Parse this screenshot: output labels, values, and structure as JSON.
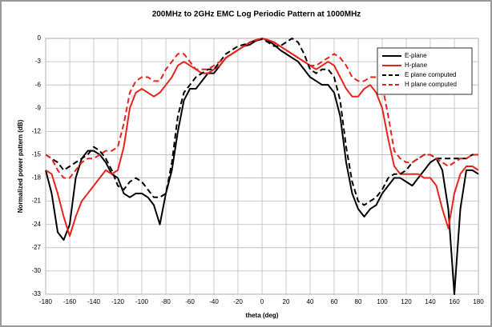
{
  "chart_data": {
    "type": "line",
    "title": "200MHz to 2GHz EMC Log Periodic Pattern at 1000MHz",
    "x_label": "theta (deg)",
    "y_label": "Normalized power pattern (dB)",
    "x": [
      -180,
      -175,
      -170,
      -165,
      -160,
      -155,
      -150,
      -145,
      -140,
      -135,
      -130,
      -125,
      -120,
      -115,
      -110,
      -105,
      -100,
      -95,
      -90,
      -85,
      -80,
      -75,
      -70,
      -65,
      -60,
      -55,
      -50,
      -45,
      -40,
      -35,
      -30,
      -25,
      -20,
      -15,
      -10,
      -5,
      0,
      5,
      10,
      15,
      20,
      25,
      30,
      35,
      40,
      45,
      50,
      55,
      60,
      65,
      70,
      75,
      80,
      85,
      90,
      95,
      100,
      105,
      110,
      115,
      120,
      125,
      130,
      135,
      140,
      145,
      150,
      155,
      160,
      165,
      170,
      175,
      180
    ],
    "series": [
      {
        "name": "E-plane",
        "color": "#000000",
        "linestyle": "solid",
        "values": [
          -17,
          -20,
          -25,
          -26,
          -24,
          -18,
          -15.5,
          -14.5,
          -14.5,
          -15,
          -16,
          -17.5,
          -18,
          -20,
          -20.5,
          -20,
          -20,
          -20.5,
          -21.5,
          -24,
          -20,
          -17,
          -12,
          -8,
          -6.5,
          -6.5,
          -5.5,
          -4.5,
          -4.5,
          -3.5,
          -2.5,
          -2,
          -1.5,
          -1,
          -0.8,
          -0.3,
          0,
          -0.3,
          -0.8,
          -1.5,
          -2,
          -2.5,
          -3,
          -4,
          -5,
          -5.5,
          -6,
          -6,
          -7,
          -10,
          -16,
          -20,
          -22,
          -23,
          -22,
          -21.5,
          -20,
          -19,
          -18,
          -18,
          -18.5,
          -19,
          -18,
          -17,
          -16,
          -15.5,
          -17,
          -22,
          -33,
          -22,
          -17,
          -17,
          -17.5
        ]
      },
      {
        "name": "H-plane",
        "color": "#e8241c",
        "linestyle": "solid",
        "values": [
          -17,
          -17.5,
          -20,
          -23,
          -25.5,
          -23,
          -21,
          -20,
          -19,
          -18,
          -17,
          -17.5,
          -17,
          -14,
          -9,
          -7,
          -6.5,
          -7,
          -7.5,
          -7,
          -6,
          -5,
          -3.5,
          -3,
          -3.5,
          -4,
          -4.5,
          -4.5,
          -4,
          -3.5,
          -2.5,
          -2,
          -1.5,
          -1,
          -0.5,
          -0.2,
          0,
          -0.2,
          -0.5,
          -1,
          -1.5,
          -2,
          -2.5,
          -3,
          -3.5,
          -4,
          -3.5,
          -3,
          -3.5,
          -5,
          -6.5,
          -7.5,
          -7.5,
          -6.5,
          -6,
          -7,
          -9,
          -13,
          -16.5,
          -17.5,
          -17.5,
          -17.5,
          -17.5,
          -18,
          -18,
          -19,
          -22,
          -24.5,
          -20,
          -17.5,
          -16.5,
          -16.5,
          -17
        ]
      },
      {
        "name": "E plane computed",
        "color": "#000000",
        "linestyle": "dashed",
        "values": [
          -15,
          -15.5,
          -16,
          -17,
          -16.5,
          -16,
          -15.5,
          -15,
          -14,
          -14.5,
          -15.5,
          -17,
          -19,
          -19.5,
          -18.5,
          -18,
          -18.5,
          -19.5,
          -20.5,
          -20.5,
          -20,
          -16,
          -10,
          -7,
          -6,
          -5,
          -4.5,
          -4,
          -4,
          -3,
          -2,
          -1.5,
          -1,
          -0.8,
          -0.5,
          -0.3,
          -0.1,
          -0.5,
          -1,
          -1,
          -0.5,
          0,
          -0.5,
          -2,
          -4,
          -4.5,
          -4,
          -4,
          -5,
          -8,
          -14,
          -18.5,
          -21,
          -21.5,
          -21,
          -20.5,
          -19.5,
          -18,
          -17.5,
          -17.5,
          -17,
          -16,
          -15.5,
          -15,
          -15,
          -15.5,
          -15.5,
          -15.5,
          -15.5,
          -15.5,
          -15.5,
          -15,
          -15
        ]
      },
      {
        "name": "H plane computed",
        "color": "#e8241c",
        "linestyle": "dashed",
        "values": [
          -15,
          -15.5,
          -17,
          -18,
          -18,
          -17,
          -16,
          -15.5,
          -15.5,
          -15,
          -14.5,
          -14.5,
          -14,
          -11,
          -7,
          -5.5,
          -5,
          -5,
          -5.5,
          -5.5,
          -4,
          -3,
          -2,
          -2,
          -3,
          -4,
          -4,
          -4,
          -3.5,
          -3,
          -2.5,
          -2,
          -1.5,
          -1,
          -0.5,
          -0.2,
          0,
          -0.2,
          -0.5,
          -1,
          -1.5,
          -2,
          -2.5,
          -3,
          -3.5,
          -3.5,
          -3,
          -2.5,
          -2,
          -2.5,
          -3.5,
          -5,
          -5.5,
          -5.5,
          -5,
          -5,
          -6,
          -10,
          -14.5,
          -15.5,
          -16,
          -16,
          -15.5,
          -15,
          -15,
          -15.5,
          -16,
          -16.5,
          -16,
          -15.5,
          -15.5,
          -15,
          -15
        ]
      }
    ],
    "xlim": [
      -180,
      180
    ],
    "xticks": [
      -180,
      -160,
      -140,
      -120,
      -100,
      -80,
      -60,
      -40,
      -20,
      0,
      20,
      40,
      60,
      80,
      100,
      120,
      140,
      160,
      180
    ],
    "ylim": [
      -33,
      0
    ],
    "yticks": [
      0,
      -3,
      -6,
      -9,
      -12,
      -15,
      -18,
      -21,
      -24,
      -27,
      -30,
      -33
    ],
    "grid": true,
    "legend": "upper right"
  }
}
